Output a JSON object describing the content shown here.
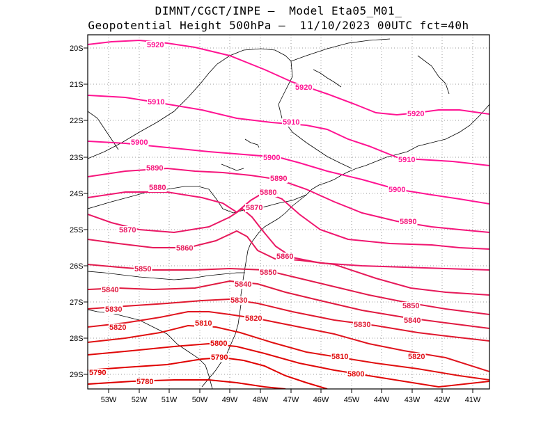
{
  "title": {
    "line1": "DIMNT/CGCT/INPE –  Model Eta05_M01_",
    "line2": "Geopotential Height 500hPa –  11/10/2023 00UTC fct=40h"
  },
  "axes": {
    "lat_labels": [
      "20S",
      "21S",
      "22S",
      "23S",
      "24S",
      "25S",
      "26S",
      "27S",
      "28S",
      "29S"
    ],
    "lon_labels": [
      "53W",
      "52W",
      "51W",
      "50W",
      "49W",
      "48W",
      "47W",
      "46W",
      "45W",
      "44W",
      "43W",
      "42W",
      "41W"
    ]
  },
  "colors": {
    "c5920": "#ff1493",
    "c5910": "#ff1493",
    "c5900": "#ff1493",
    "c5890": "#f5157a",
    "c5880": "#f01670",
    "c5870": "#ea1966",
    "c5860": "#e61a5a",
    "c5850": "#e21a4c",
    "c5840": "#e01a40",
    "c5830": "#e0182e",
    "c5820": "#e0151f",
    "c5810": "#e01010",
    "c5800": "#e00808",
    "c5790": "#e00000",
    "c5780": "#dd0000",
    "coast": "#000000",
    "grid": "#9a9a9a"
  },
  "contours": [
    {
      "value": "5920",
      "labels": [
        "5920",
        "5920",
        "5920"
      ]
    },
    {
      "value": "5910",
      "labels": [
        "5910",
        "5910",
        "5910"
      ]
    },
    {
      "value": "5900",
      "labels": [
        "5900",
        "5900",
        "5900"
      ]
    },
    {
      "value": "5890",
      "labels": [
        "5890",
        "5890",
        "5890"
      ]
    },
    {
      "value": "5880",
      "labels": [
        "5880",
        "5880"
      ]
    },
    {
      "value": "5870",
      "labels": [
        "5870",
        "5870"
      ]
    },
    {
      "value": "5860",
      "labels": [
        "5860",
        "5860"
      ]
    },
    {
      "value": "5850",
      "labels": [
        "5850",
        "5850",
        "5850"
      ]
    },
    {
      "value": "5840",
      "labels": [
        "5840",
        "5840",
        "5840"
      ]
    },
    {
      "value": "5830",
      "labels": [
        "5830",
        "5830",
        "5830"
      ]
    },
    {
      "value": "5820",
      "labels": [
        "5820",
        "5820",
        "5820"
      ]
    },
    {
      "value": "5810",
      "labels": [
        "5810",
        "5810"
      ]
    },
    {
      "value": "5800",
      "labels": [
        "5800",
        "5800"
      ]
    },
    {
      "value": "5790",
      "labels": [
        "5790",
        "5790"
      ]
    },
    {
      "value": "5780",
      "labels": [
        "5780"
      ]
    }
  ]
}
